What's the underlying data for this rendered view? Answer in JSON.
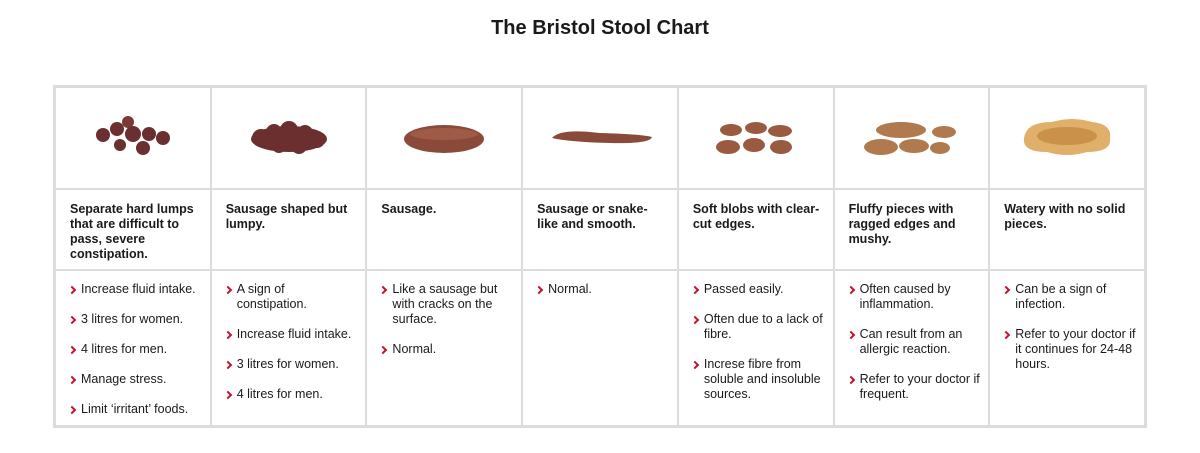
{
  "title": "The Bristol Stool Chart",
  "columns": [
    {
      "description": "Separate hard lumps that are difficult to pass, severe constipation.",
      "points": [
        "Increase fluid intake.",
        "3 litres for women.",
        "4 litres for men.",
        "Manage stress.",
        "Limit ‘irritant’ foods."
      ]
    },
    {
      "description": "Sausage shaped but lumpy.",
      "points": [
        "A sign of constipation.",
        "Increase fluid intake.",
        "3 litres for women.",
        "4 litres for men."
      ]
    },
    {
      "description": "Sausage.",
      "points": [
        "Like a sausage but with cracks on the surface.",
        "Normal."
      ]
    },
    {
      "description": "Sausage or snake-like and smooth.",
      "points": [
        "Normal."
      ]
    },
    {
      "description": "Soft blobs with clear-cut edges.",
      "points": [
        "Passed easily.",
        "Often due to a lack of fibre.",
        "Increse fibre from soluble and insoluble sources."
      ]
    },
    {
      "description": "Fluffy pieces with ragged edges and mushy.",
      "points": [
        "Often caused by inflammation.",
        "Can result from an allergic reaction.",
        "Refer to your doctor if frequent."
      ]
    },
    {
      "description": "Watery with no solid pieces.",
      "points": [
        "Can be a sign of infection.",
        "Refer to your doctor if it continues for 24-48 hours."
      ]
    }
  ]
}
